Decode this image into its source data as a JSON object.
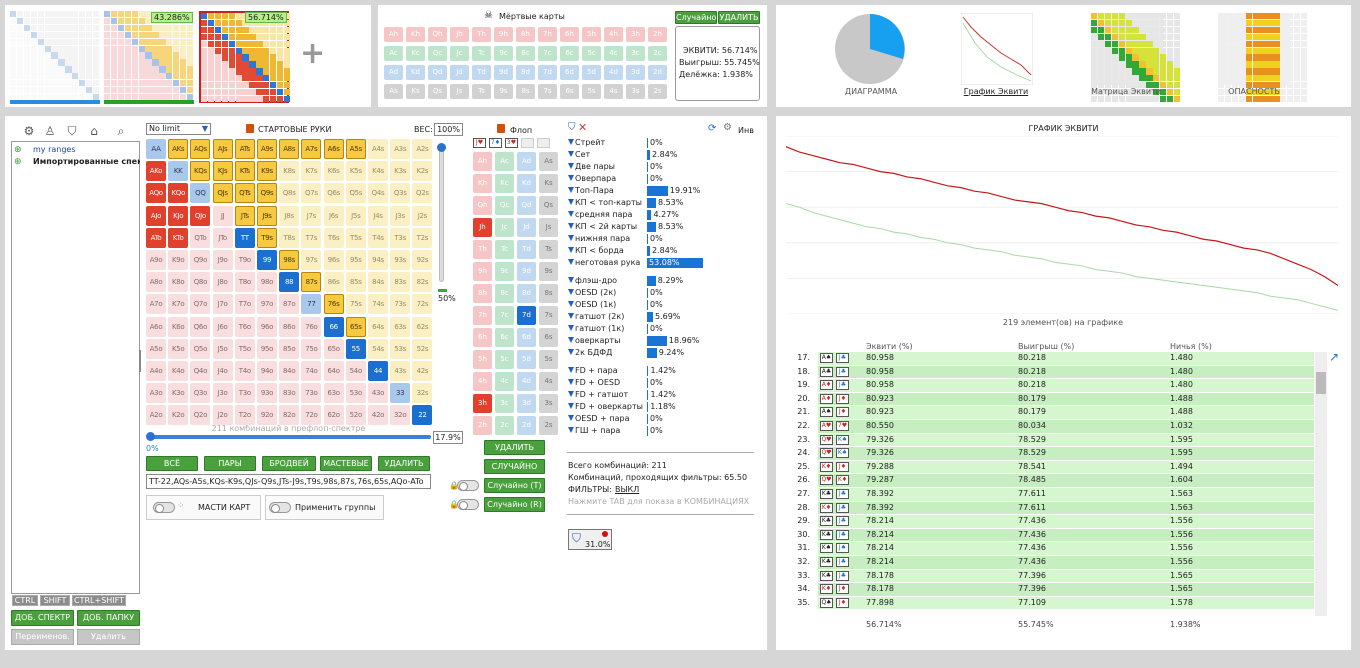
{
  "thumbs": {
    "badge1": "43.286%",
    "badge2": "56.714%",
    "plus": "+"
  },
  "dead": {
    "title": "Мёртвые карты",
    "random": "Случайно",
    "delete": "УДАЛИТЬ",
    "equity": "ЭКВИТИ: 56.714%",
    "win": "Выигрыш: 55.745%",
    "tie": "Делёжка: 1.938%",
    "rows": [
      [
        "Ah",
        "Kh",
        "Qh",
        "Jh",
        "Th",
        "9h",
        "8h",
        "7h",
        "6h",
        "5h",
        "4h",
        "3h",
        "2h"
      ],
      [
        "Ac",
        "Kc",
        "Qc",
        "Jc",
        "Tc",
        "9c",
        "8c",
        "7c",
        "6c",
        "5c",
        "4c",
        "3c",
        "2c"
      ],
      [
        "Ad",
        "Kd",
        "Qd",
        "Jd",
        "Td",
        "9d",
        "8d",
        "7d",
        "6d",
        "5d",
        "4d",
        "3d",
        "2d"
      ],
      [
        "As",
        "Ks",
        "Qs",
        "Js",
        "Ts",
        "9s",
        "8s",
        "7s",
        "6s",
        "5s",
        "4s",
        "3s",
        "2s"
      ]
    ]
  },
  "views": {
    "diagram": "ДИАГРАММА",
    "graph": "График Эквити",
    "matrix": "Матрица Эквити",
    "danger": "ОПАСНОСТЬ",
    "pie_big": "",
    "pie_small": ""
  },
  "left": {
    "tree1": "my ranges",
    "tree2": "Импортированные спект",
    "ctrl": "CTRL",
    "shift": "SHIFT",
    "ctrlshift": "CTRL+SHIFT",
    "add_range": "ДОБ. СПЕКТР",
    "add_folder": "ДОБ. ПАПКУ",
    "rename": "Переименов.",
    "remove": "Удалить"
  },
  "grid": {
    "limit": "No limit",
    "starting": "СТАРТОВЫЕ РУКИ",
    "weight_label": "ВЕС:",
    "weight": "100%",
    "combos": "211 комбинаций в префлоп-спектре",
    "slider_pct": "17.9%",
    "slider_zero": "0%",
    "vslider": "50%",
    "b_all": "ВСЁ",
    "b_pairs": "ПАРЫ",
    "b_broad": "БРОДВЕЙ",
    "b_suited": "МАСТЕВЫЕ",
    "b_delete": "УДАЛИТЬ",
    "range_text": "TT-22,AQs-A5s,KQs-K9s,QJs-Q9s,JTs-J9s,T9s,98s,87s,76s,65s,AQo-ATo",
    "suits": "МАСТИ КАРТ",
    "groups": "Применить группы"
  },
  "flop": {
    "title": "Флоп",
    "board": [
      "J♥",
      "7♦",
      "3♥"
    ],
    "c1": [
      "Ah",
      "Kh",
      "Qh",
      "Jh",
      "Th",
      "9h",
      "8h",
      "7h",
      "6h",
      "5h",
      "4h",
      "3h",
      "2h"
    ],
    "c2": [
      "Ac",
      "Kc",
      "Qc",
      "Jc",
      "Tc",
      "9c",
      "8c",
      "7c",
      "6c",
      "5c",
      "4c",
      "3c",
      "2c"
    ],
    "c3": [
      "Ad",
      "Kd",
      "Qd",
      "Jd",
      "Td",
      "9d",
      "8d",
      "7d",
      "6d",
      "5d",
      "4d",
      "3d",
      "2d"
    ],
    "c4": [
      "As",
      "Ks",
      "Qs",
      "Js",
      "Ts",
      "9s",
      "8s",
      "7s",
      "6s",
      "5s",
      "4s",
      "3s",
      "2s"
    ],
    "delete": "УДАЛИТЬ",
    "random": "СЛУЧАЙНО",
    "random_t": "Случайно (T)",
    "random_r": "Случайно (R)"
  },
  "stats": {
    "inv": "Инв",
    "g1": [
      {
        "n": "Стрейт",
        "v": "0%",
        "p": 0
      },
      {
        "n": "Сет",
        "v": "2.84%",
        "p": 2.84
      },
      {
        "n": "Две пары",
        "v": "0%",
        "p": 0
      },
      {
        "n": "Оверпара",
        "v": "0%",
        "p": 0
      },
      {
        "n": "Топ-Пара",
        "v": "19.91%",
        "p": 19.91
      },
      {
        "n": "КП < топ-карты",
        "v": "8.53%",
        "p": 8.53
      },
      {
        "n": "средняя пара",
        "v": "4.27%",
        "p": 4.27
      },
      {
        "n": "КП < 2й карты",
        "v": "8.53%",
        "p": 8.53
      },
      {
        "n": "нижняя пара",
        "v": "0%",
        "p": 0
      },
      {
        "n": "КП < борда",
        "v": "2.84%",
        "p": 2.84
      },
      {
        "n": "неготовая рука",
        "v": "53.08%",
        "p": 53.08
      }
    ],
    "g2": [
      {
        "n": "флэш-дро",
        "v": "8.29%",
        "p": 8.29
      },
      {
        "n": "OESD (2к)",
        "v": "0%",
        "p": 0
      },
      {
        "n": "OESD (1к)",
        "v": "0%",
        "p": 0
      },
      {
        "n": "гатшот (2к)",
        "v": "5.69%",
        "p": 5.69
      },
      {
        "n": "гатшот (1к)",
        "v": "0%",
        "p": 0
      },
      {
        "n": "оверкарты",
        "v": "18.96%",
        "p": 18.96
      },
      {
        "n": "2к БДФД",
        "v": "9.24%",
        "p": 9.24
      }
    ],
    "g3": [
      {
        "n": "FD + пара",
        "v": "1.42%",
        "p": 1.42
      },
      {
        "n": "FD + OESD",
        "v": "0%",
        "p": 0
      },
      {
        "n": "FD + гатшот",
        "v": "1.42%",
        "p": 1.42
      },
      {
        "n": "FD + оверкарты",
        "v": "1.18%",
        "p": 1.18
      },
      {
        "n": "OESD + пара",
        "v": "0%",
        "p": 0
      },
      {
        "n": "ГШ + пара",
        "v": "0%",
        "p": 0
      }
    ],
    "total": "Всего комбинаций: 211",
    "passing": "Комбинаций, проходящих фильтры: 65.50",
    "filters": "ФИЛЬТРЫ:",
    "off": "ВЫКЛ",
    "hint": "Нажмите TAB для показа в КОМБИНАЦИЯХ",
    "badge": "31.0%"
  },
  "chart": {
    "title": "ГРАФИК ЭКВИТИ",
    "footer": "219 элемент(ов) на графике"
  },
  "chart_data": {
    "type": "line",
    "series": [
      {
        "values": [
          94,
          91,
          89,
          87,
          85,
          84,
          82,
          80,
          79,
          77,
          76,
          74,
          72,
          71,
          69,
          68,
          66,
          64,
          63,
          62,
          60,
          58,
          57,
          55,
          54,
          52,
          50,
          49,
          47,
          46,
          44,
          42,
          41,
          39,
          37,
          36,
          34,
          31,
          28,
          25,
          21,
          16
        ]
      },
      {
        "values": [
          62,
          60,
          57,
          55,
          53,
          51,
          49,
          48,
          46,
          45,
          43,
          42,
          40,
          39,
          37,
          36,
          35,
          33,
          32,
          31,
          29,
          28,
          27,
          25,
          24,
          23,
          21,
          20,
          19,
          18,
          17,
          16,
          15,
          14,
          13,
          12,
          10,
          9,
          8,
          6,
          4,
          2
        ]
      }
    ]
  },
  "table": {
    "h_eq": "Эквити (%)",
    "h_win": "Выигрыш (%)",
    "h_tie": "Ничья (%)",
    "rows": [
      [
        "17.",
        "A♠",
        "J♣",
        "80.958",
        "80.218",
        "1.480"
      ],
      [
        "18.",
        "A♣",
        "J♣",
        "80.958",
        "80.218",
        "1.480"
      ],
      [
        "19.",
        "A♦",
        "J♣",
        "80.958",
        "80.218",
        "1.480"
      ],
      [
        "20.",
        "A♦",
        "J♦",
        "80.923",
        "80.179",
        "1.488"
      ],
      [
        "21.",
        "A♠",
        "J♦",
        "80.923",
        "80.179",
        "1.488"
      ],
      [
        "22.",
        "A♥",
        "7♥",
        "80.550",
        "80.034",
        "1.032"
      ],
      [
        "23.",
        "Q♥",
        "K♠",
        "79.326",
        "78.529",
        "1.595"
      ],
      [
        "24.",
        "Q♥",
        "K♠",
        "79.326",
        "78.529",
        "1.595"
      ],
      [
        "25.",
        "K♦",
        "J♦",
        "79.288",
        "78.541",
        "1.494"
      ],
      [
        "26.",
        "Q♥",
        "K♦",
        "79.287",
        "78.485",
        "1.604"
      ],
      [
        "27.",
        "K♣",
        "J♣",
        "78.392",
        "77.611",
        "1.563"
      ],
      [
        "28.",
        "K♦",
        "J♣",
        "78.392",
        "77.611",
        "1.563"
      ],
      [
        "29.",
        "K♣",
        "J♣",
        "78.214",
        "77.436",
        "1.556"
      ],
      [
        "30.",
        "K♣",
        "J♣",
        "78.214",
        "77.436",
        "1.556"
      ],
      [
        "31.",
        "K♠",
        "J♠",
        "78.214",
        "77.436",
        "1.556"
      ],
      [
        "32.",
        "K♣",
        "J♣",
        "78.214",
        "77.436",
        "1.556"
      ],
      [
        "33.",
        "K♣",
        "J♣",
        "78.178",
        "77.396",
        "1.565"
      ],
      [
        "34.",
        "K♦",
        "J♦",
        "78.178",
        "77.396",
        "1.565"
      ],
      [
        "35.",
        "Q♠",
        "J♦",
        "77.898",
        "77.109",
        "1.578"
      ]
    ],
    "f_eq": "56.714%",
    "f_win": "55.745%",
    "f_tie": "1.938%"
  }
}
